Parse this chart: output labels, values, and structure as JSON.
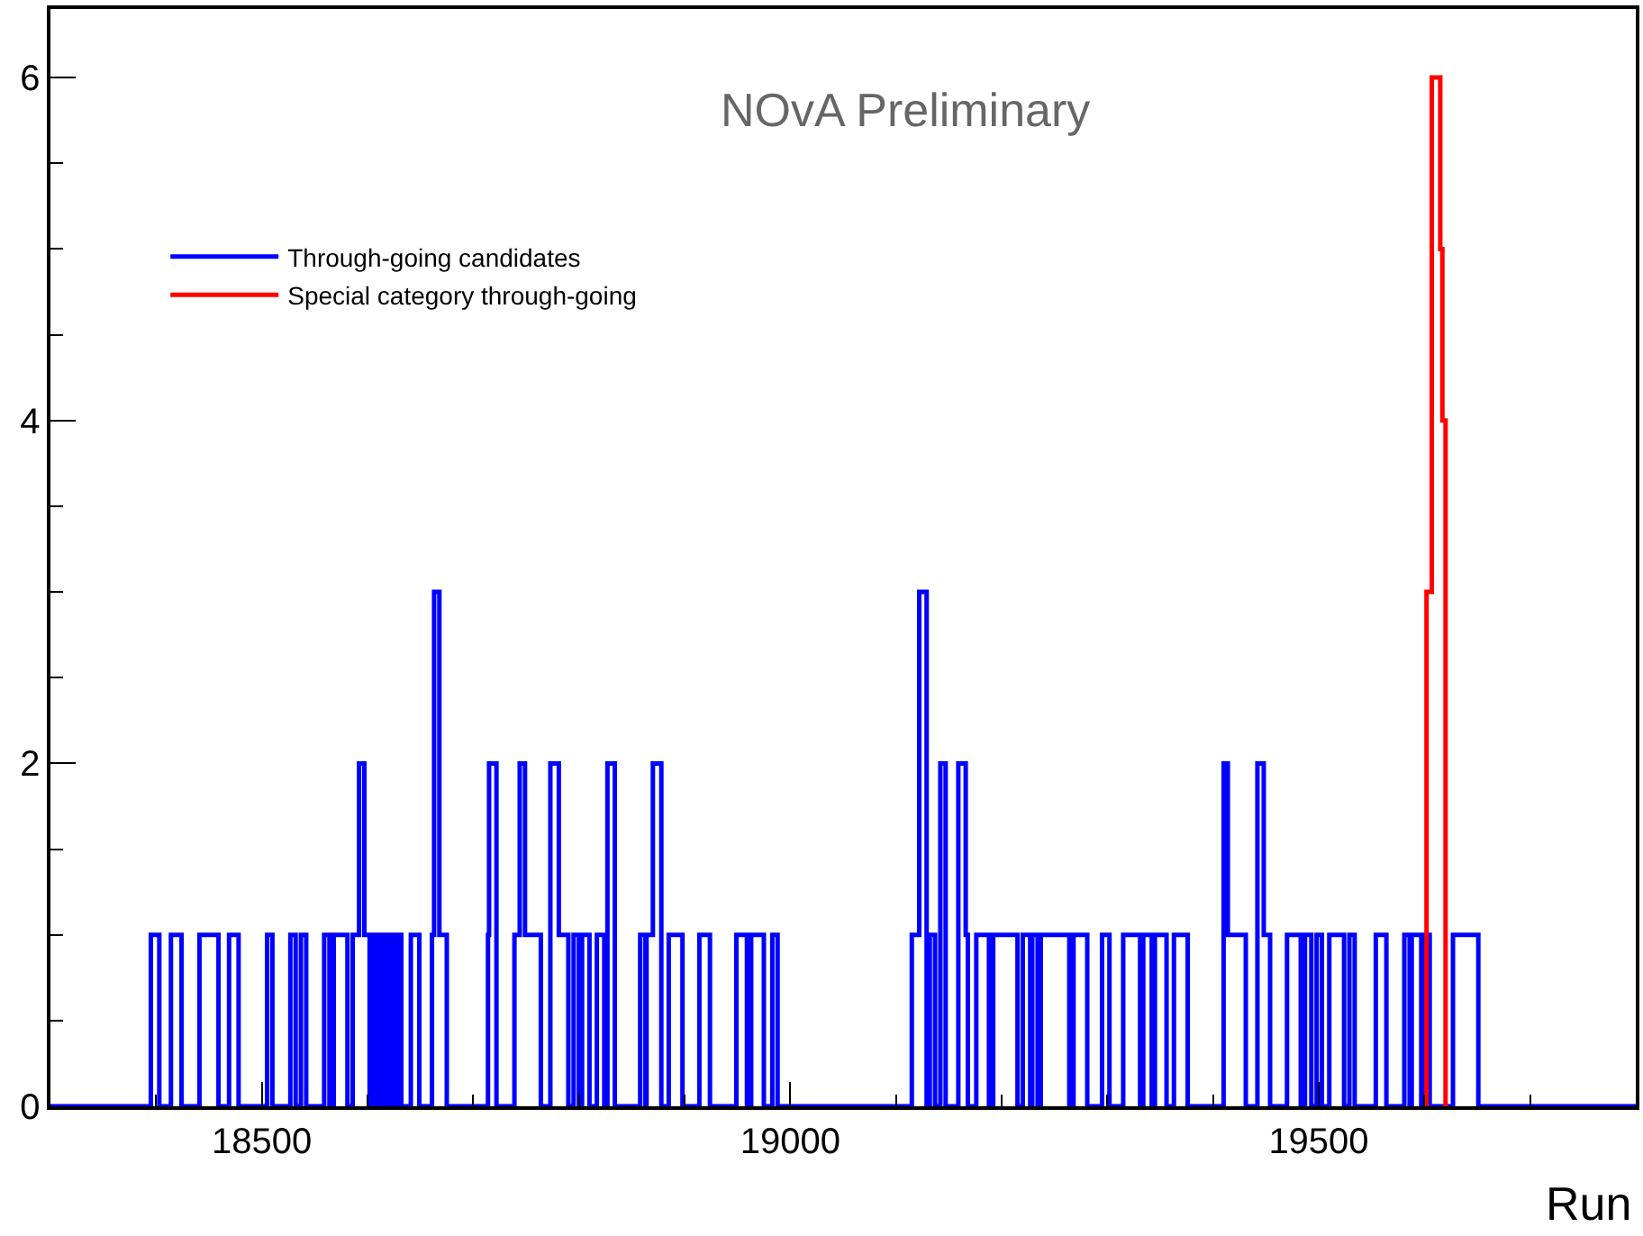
{
  "chart_data": {
    "type": "step",
    "xlabel": "Run",
    "annotations": [
      "NOvA Preliminary"
    ],
    "xlim": [
      18300,
      19800
    ],
    "xticks": [
      18500,
      19000,
      19500
    ],
    "ylim": [
      0,
      6.4
    ],
    "yticks": [
      0,
      2,
      4,
      6
    ],
    "grid": false,
    "legend": "top left",
    "marker": "none",
    "line_style": "solid",
    "series": [
      {
        "name": "Through-going candidates",
        "color": "#0000ff",
        "x": [
          18300,
          18395,
          18403,
          18414,
          18424,
          18441,
          18459,
          18469,
          18478,
          18505,
          18510,
          18527,
          18532,
          18537,
          18542,
          18559,
          18564,
          18568,
          18581,
          18586,
          18592,
          18597,
          18602,
          18603,
          18607,
          18610,
          18614,
          18617,
          18620,
          18624,
          18627,
          18629,
          18632,
          18641,
          18649,
          18661,
          18663,
          18668,
          18675,
          18714,
          18715,
          18722,
          18739,
          18744,
          18749,
          18764,
          18773,
          18781,
          18790,
          18795,
          18800,
          18803,
          18810,
          18817,
          18824,
          18827,
          18834,
          18858,
          18863,
          18864,
          18870,
          18878,
          18885,
          18898,
          18914,
          18924,
          18949,
          18959,
          18963,
          18975,
          18983,
          18988,
          19115,
          19122,
          19129,
          19132,
          19137,
          19142,
          19147,
          19159,
          19166,
          19168,
          19176,
          19188,
          19192,
          19215,
          19220,
          19227,
          19229,
          19234,
          19237,
          19264,
          19268,
          19281,
          19295,
          19302,
          19315,
          19331,
          19334,
          19342,
          19345,
          19356,
          19363,
          19376,
          19410,
          19414,
          19431,
          19442,
          19448,
          19454,
          19470,
          19483,
          19487,
          19493,
          19498,
          19503,
          19510,
          19524,
          19529,
          19534,
          19554,
          19564,
          19581,
          19586,
          19588,
          19597,
          19600,
          19605,
          19627,
          19651,
          19800
        ],
        "values": [
          0,
          1,
          0,
          1,
          0,
          1,
          0,
          1,
          0,
          1,
          0,
          1,
          0,
          1,
          0,
          1,
          0,
          1,
          0,
          1,
          2,
          1,
          0,
          1,
          0,
          1,
          0,
          1,
          0,
          1,
          0,
          1,
          0,
          1,
          0,
          1,
          3,
          1,
          0,
          1,
          2,
          0,
          1,
          2,
          1,
          0,
          2,
          1,
          0,
          1,
          0,
          1,
          0,
          1,
          0,
          2,
          0,
          1,
          0,
          1,
          2,
          0,
          1,
          0,
          1,
          0,
          1,
          0,
          1,
          0,
          1,
          0,
          1,
          3,
          0,
          1,
          0,
          2,
          0,
          2,
          1,
          0,
          1,
          0,
          1,
          0,
          1,
          0,
          1,
          0,
          1,
          0,
          1,
          0,
          1,
          0,
          1,
          0,
          1,
          0,
          1,
          0,
          1,
          0,
          2,
          1,
          0,
          2,
          1,
          0,
          1,
          0,
          1,
          0,
          1,
          0,
          1,
          0,
          1,
          0,
          1,
          0,
          1,
          0,
          1,
          0,
          1,
          0,
          1,
          0,
          0
        ]
      },
      {
        "name": "Special category through-going",
        "color": "#ff0000",
        "x": [
          19601,
          19602,
          19607,
          19615,
          19617,
          19620
        ],
        "values": [
          0,
          3,
          6,
          5,
          4,
          0
        ]
      }
    ]
  }
}
